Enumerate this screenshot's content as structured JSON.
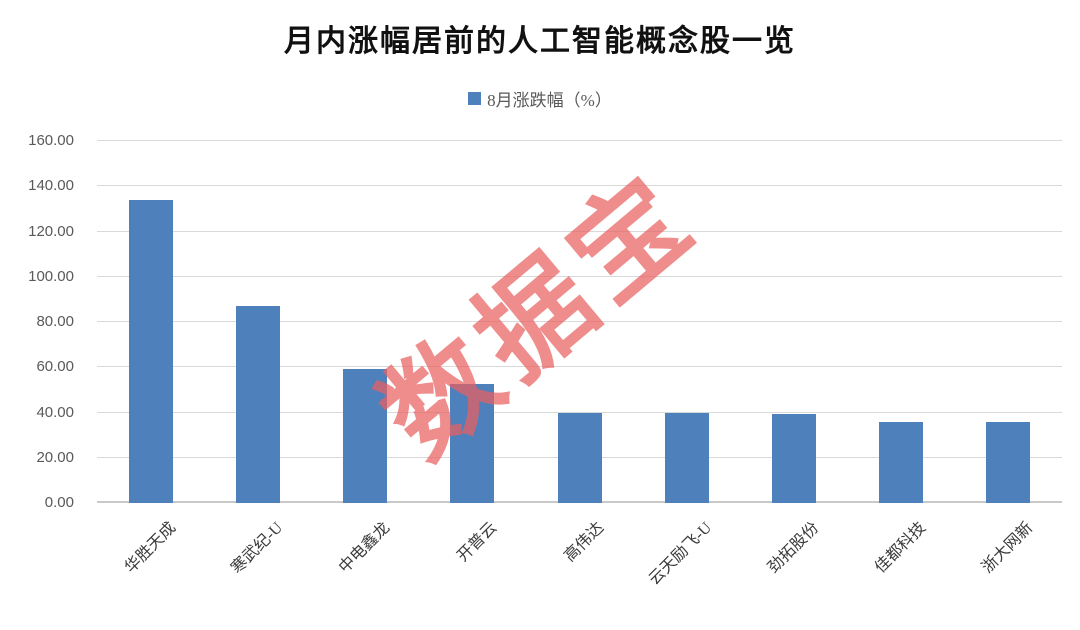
{
  "title": "月内涨幅居前的人工智能概念股一览",
  "legend": {
    "label": "8月涨跌幅（%）"
  },
  "watermark": {
    "text": "数据宝"
  },
  "colors": {
    "bar": "#4e80bc",
    "watermark_red": "#e96060",
    "gridline": "#d9d9d9",
    "axis_text": "#595959"
  },
  "chart_data": {
    "type": "bar",
    "title": "月内涨幅居前的人工智能概念股一览",
    "categories": [
      "华胜天成",
      "寒武纪-U",
      "中电鑫龙",
      "开普云",
      "高伟达",
      "云天励飞-U",
      "劲拓股份",
      "佳都科技",
      "浙大网新"
    ],
    "series": [
      {
        "name": "8月涨跌幅（%）",
        "values": [
          134.0,
          87.0,
          59.4,
          52.8,
          40.0,
          39.6,
          39.4,
          35.8,
          35.7
        ]
      }
    ],
    "xlabel": "",
    "ylabel": "",
    "ylim": [
      0,
      160
    ],
    "ytick_interval": 20,
    "ytick_labels": [
      "0.00",
      "20.00",
      "40.00",
      "60.00",
      "80.00",
      "100.00",
      "120.00",
      "140.00",
      "160.00"
    ],
    "grid": true,
    "legend_position": "top",
    "xtick_rotation": -45
  }
}
